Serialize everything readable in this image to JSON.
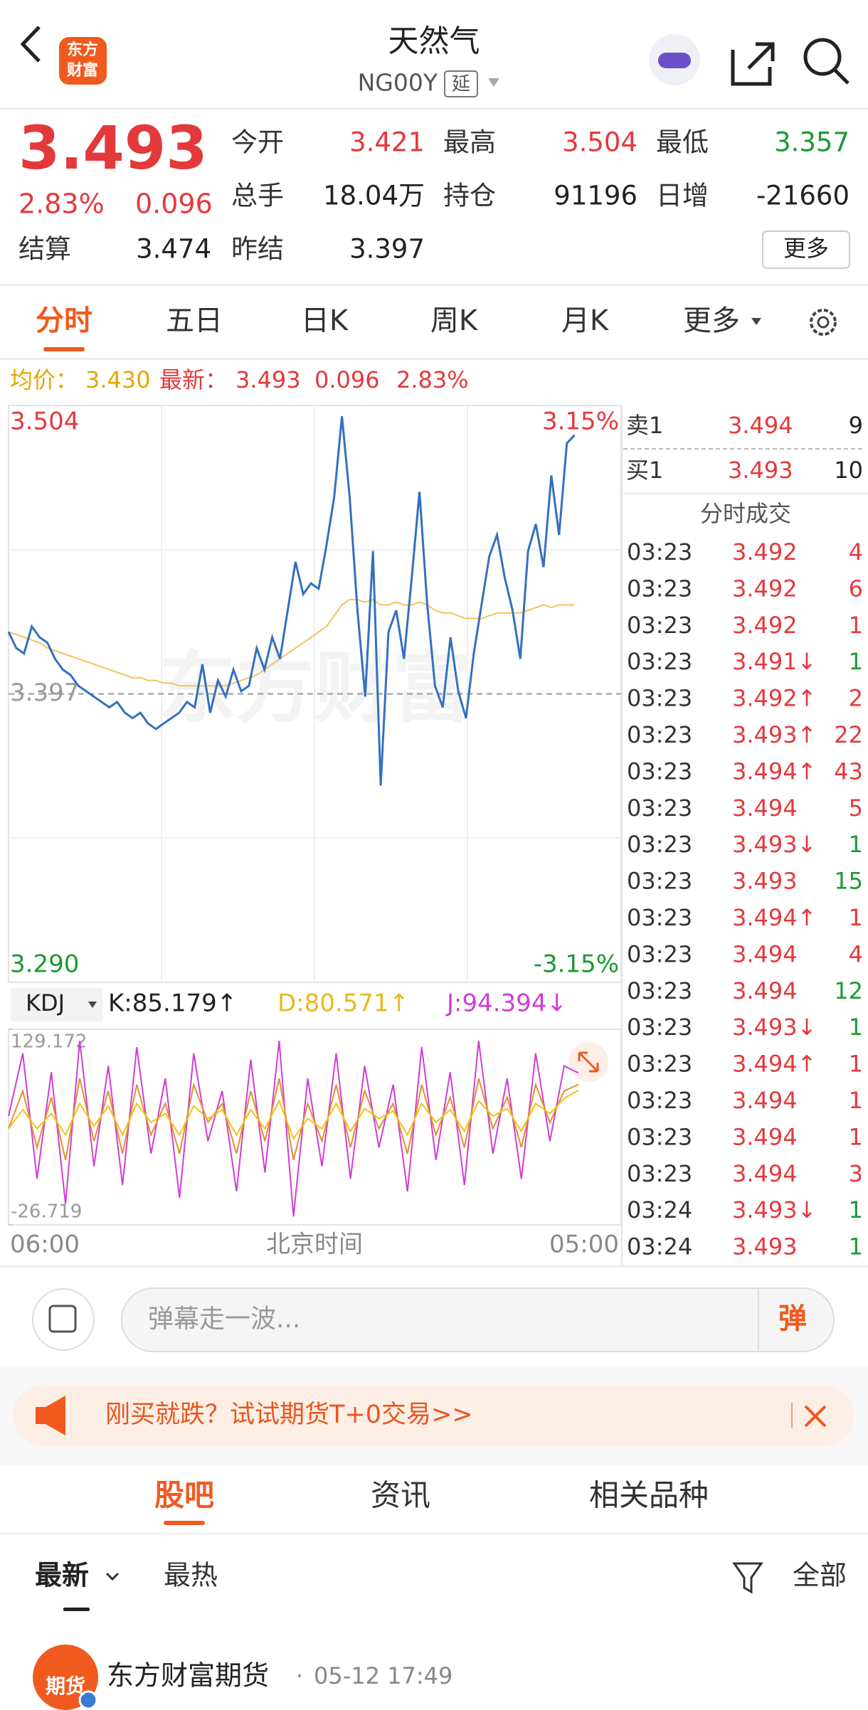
{
  "header": {
    "title": "天然气",
    "code": "NG00Y",
    "delay_tag": "延",
    "logo": [
      "东方",
      "财富"
    ]
  },
  "quote": {
    "price": "3.493",
    "change_pct": "2.83%",
    "change": "0.096",
    "fields": [
      {
        "label": "今开",
        "value": "3.421"
      },
      {
        "label": "最高",
        "value": "3.504"
      },
      {
        "label": "最低",
        "value": "3.357"
      },
      {
        "label": "总手",
        "value": "18.04万"
      },
      {
        "label": "持仓",
        "value": "91196"
      },
      {
        "label": "日增",
        "value": "-21660"
      },
      {
        "label": "结算",
        "value": "3.474"
      },
      {
        "label": "昨结",
        "value": "3.397"
      }
    ],
    "more": "更多"
  },
  "tabs": {
    "items": [
      "分时",
      "五日",
      "日K",
      "周K",
      "月K",
      "更多"
    ],
    "active": 0
  },
  "info": {
    "avg_label": "均价：",
    "avg": "3.430",
    "last_label": "最新：",
    "last": "3.493",
    "change": "0.096",
    "change_pct": "2.83%"
  },
  "chart_data": [
    {
      "type": "line",
      "watermark": "东方财富",
      "ylim": [
        3.29,
        3.504
      ],
      "yticks": [
        {
          "value": 3.29,
          "label": "3.290"
        },
        3.397,
        3.504
      ],
      "y2lim": [
        -3.15,
        3.15
      ],
      "y2ticks": [
        {
          "value": -3.15,
          "label": "-3.15%"
        },
        {
          "value": 3.15,
          "label": "3.15%"
        }
      ],
      "x_start": "06:00",
      "x_title": "北京时间",
      "x_end": "05:00",
      "series": [
        {
          "color": "#3470c0",
          "values": [
            3.42,
            3.414,
            3.412,
            3.422,
            3.418,
            3.416,
            3.41,
            3.406,
            3.404,
            3.4,
            3.398,
            3.396,
            3.394,
            3.392,
            3.394,
            3.39,
            3.388,
            3.39,
            3.386,
            3.384,
            3.386,
            3.388,
            3.39,
            3.394,
            3.392,
            3.408,
            3.39,
            3.402,
            3.396,
            3.406,
            3.398,
            3.4,
            3.414,
            3.406,
            3.418,
            3.41,
            3.428,
            3.446,
            3.434,
            3.438,
            3.436,
            3.452,
            3.47,
            3.5,
            3.47,
            3.428,
            3.396,
            3.45,
            3.363,
            3.42,
            3.428,
            3.41,
            3.44,
            3.472,
            3.43,
            3.4,
            3.392,
            3.418,
            3.398,
            3.388,
            3.412,
            3.43,
            3.448,
            3.456,
            3.44,
            3.428,
            3.41,
            3.45,
            3.46,
            3.444,
            3.478,
            3.456,
            3.49,
            3.493,
            null,
            null,
            null,
            null,
            null,
            null
          ]
        },
        {
          "color": "#f2c35a",
          "values": [
            3.42,
            3.419,
            3.418,
            3.417,
            3.416,
            3.414,
            3.413,
            3.412,
            3.411,
            3.41,
            3.409,
            3.408,
            3.407,
            3.406,
            3.405,
            3.404,
            3.403,
            3.403,
            3.402,
            3.402,
            3.401,
            3.401,
            3.4,
            3.4,
            3.4,
            3.4,
            3.4,
            3.4,
            3.4,
            3.401,
            3.402,
            3.403,
            3.404,
            3.406,
            3.408,
            3.41,
            3.412,
            3.414,
            3.416,
            3.418,
            3.42,
            3.422,
            3.426,
            3.43,
            3.432,
            3.432,
            3.431,
            3.432,
            3.43,
            3.43,
            3.431,
            3.43,
            3.43,
            3.431,
            3.43,
            3.428,
            3.427,
            3.427,
            3.426,
            3.425,
            3.425,
            3.425,
            3.426,
            3.427,
            3.427,
            3.427,
            3.427,
            3.428,
            3.429,
            3.43,
            3.429,
            3.43,
            3.43,
            3.43,
            null,
            null,
            null,
            null,
            null,
            null
          ]
        }
      ]
    },
    {
      "type": "line",
      "selector": "KDJ",
      "ylim": [
        -26.719,
        129.172
      ],
      "yticks": [
        -26.719,
        129.172
      ],
      "series": [
        {
          "name": "K:85.179↑",
          "color": "#e0902c",
          "label_color": "#222222",
          "values": [
            50,
            80,
            35,
            75,
            25,
            90,
            40,
            80,
            30,
            85,
            45,
            70,
            30,
            85,
            55,
            70,
            30,
            80,
            40,
            90,
            25,
            70,
            40,
            85,
            35,
            80,
            50,
            70,
            30,
            85,
            45,
            75,
            35,
            90,
            50,
            75,
            35,
            85,
            55,
            80,
            85.179,
            null,
            null,
            null
          ]
        },
        {
          "name": "D:80.571↑",
          "color": "#f0c020",
          "label_color": "#e8b820",
          "values": [
            50,
            65,
            50,
            62,
            45,
            70,
            52,
            68,
            45,
            70,
            55,
            62,
            45,
            68,
            58,
            65,
            45,
            65,
            50,
            72,
            42,
            58,
            50,
            70,
            48,
            66,
            58,
            64,
            45,
            70,
            55,
            65,
            48,
            72,
            60,
            66,
            48,
            70,
            62,
            74,
            80.571,
            null,
            null,
            null
          ]
        },
        {
          "name": "J:94.394↓",
          "color": "#d23cd6",
          "label_color": "#d23cd6",
          "values": [
            60,
            110,
            10,
            95,
            -10,
            120,
            20,
            100,
            5,
            115,
            30,
            90,
            -5,
            110,
            40,
            80,
            0,
            105,
            15,
            120,
            -20,
            90,
            20,
            110,
            10,
            100,
            35,
            85,
            0,
            115,
            25,
            95,
            5,
            120,
            30,
            90,
            10,
            110,
            40,
            100,
            94.394,
            null,
            null,
            null
          ]
        }
      ]
    }
  ],
  "order_book": [
    {
      "label": "卖1",
      "price": "3.494",
      "volume": "9"
    },
    {
      "label": "买1",
      "price": "3.493",
      "volume": "10"
    }
  ],
  "trades_title": "分时成交",
  "trades": [
    {
      "time": "03:23",
      "price": "3.492",
      "volume": "4",
      "color": "#e4393c"
    },
    {
      "time": "03:23",
      "price": "3.492",
      "volume": "6",
      "color": "#e4393c"
    },
    {
      "time": "03:23",
      "price": "3.492",
      "volume": "1",
      "color": "#e4393c"
    },
    {
      "time": "03:23",
      "price": "3.491↓",
      "volume": "1",
      "color": "#1a9a32"
    },
    {
      "time": "03:23",
      "price": "3.492↑",
      "volume": "2",
      "color": "#e4393c"
    },
    {
      "time": "03:23",
      "price": "3.493↑",
      "volume": "22",
      "color": "#e4393c"
    },
    {
      "time": "03:23",
      "price": "3.494↑",
      "volume": "43",
      "color": "#e4393c"
    },
    {
      "time": "03:23",
      "price": "3.494",
      "volume": "5",
      "color": "#e4393c"
    },
    {
      "time": "03:23",
      "price": "3.493↓",
      "volume": "1",
      "color": "#1a9a32"
    },
    {
      "time": "03:23",
      "price": "3.493",
      "volume": "15",
      "color": "#1a9a32"
    },
    {
      "time": "03:23",
      "price": "3.494↑",
      "volume": "1",
      "color": "#e4393c"
    },
    {
      "time": "03:23",
      "price": "3.494",
      "volume": "4",
      "color": "#e4393c"
    },
    {
      "time": "03:23",
      "price": "3.494",
      "volume": "12",
      "color": "#1a9a32"
    },
    {
      "time": "03:23",
      "price": "3.493↓",
      "volume": "1",
      "color": "#1a9a32"
    },
    {
      "time": "03:23",
      "price": "3.494↑",
      "volume": "1",
      "color": "#e4393c"
    },
    {
      "time": "03:23",
      "price": "3.494",
      "volume": "1",
      "color": "#e4393c"
    },
    {
      "time": "03:23",
      "price": "3.494",
      "volume": "1",
      "color": "#e4393c"
    },
    {
      "time": "03:23",
      "price": "3.494",
      "volume": "3",
      "color": "#e4393c"
    },
    {
      "time": "03:24",
      "price": "3.493↓",
      "volume": "1",
      "color": "#1a9a32"
    },
    {
      "time": "03:24",
      "price": "3.493",
      "volume": "1",
      "color": "#1a9a32"
    }
  ],
  "comment": {
    "placeholder": "弹幕走一波...",
    "button": "弹"
  },
  "banner": {
    "text": "刚买就跌？试试期货T+0交易>>"
  },
  "section_tabs": {
    "items": [
      "股吧",
      "资讯",
      "相关品种"
    ],
    "active": 0
  },
  "filter": {
    "tabs": [
      "最新",
      "最热"
    ],
    "all": "全部"
  },
  "post": {
    "avatar": "期货",
    "author": "东方财富期货",
    "separator": "·",
    "time": "05-12 17:49"
  }
}
